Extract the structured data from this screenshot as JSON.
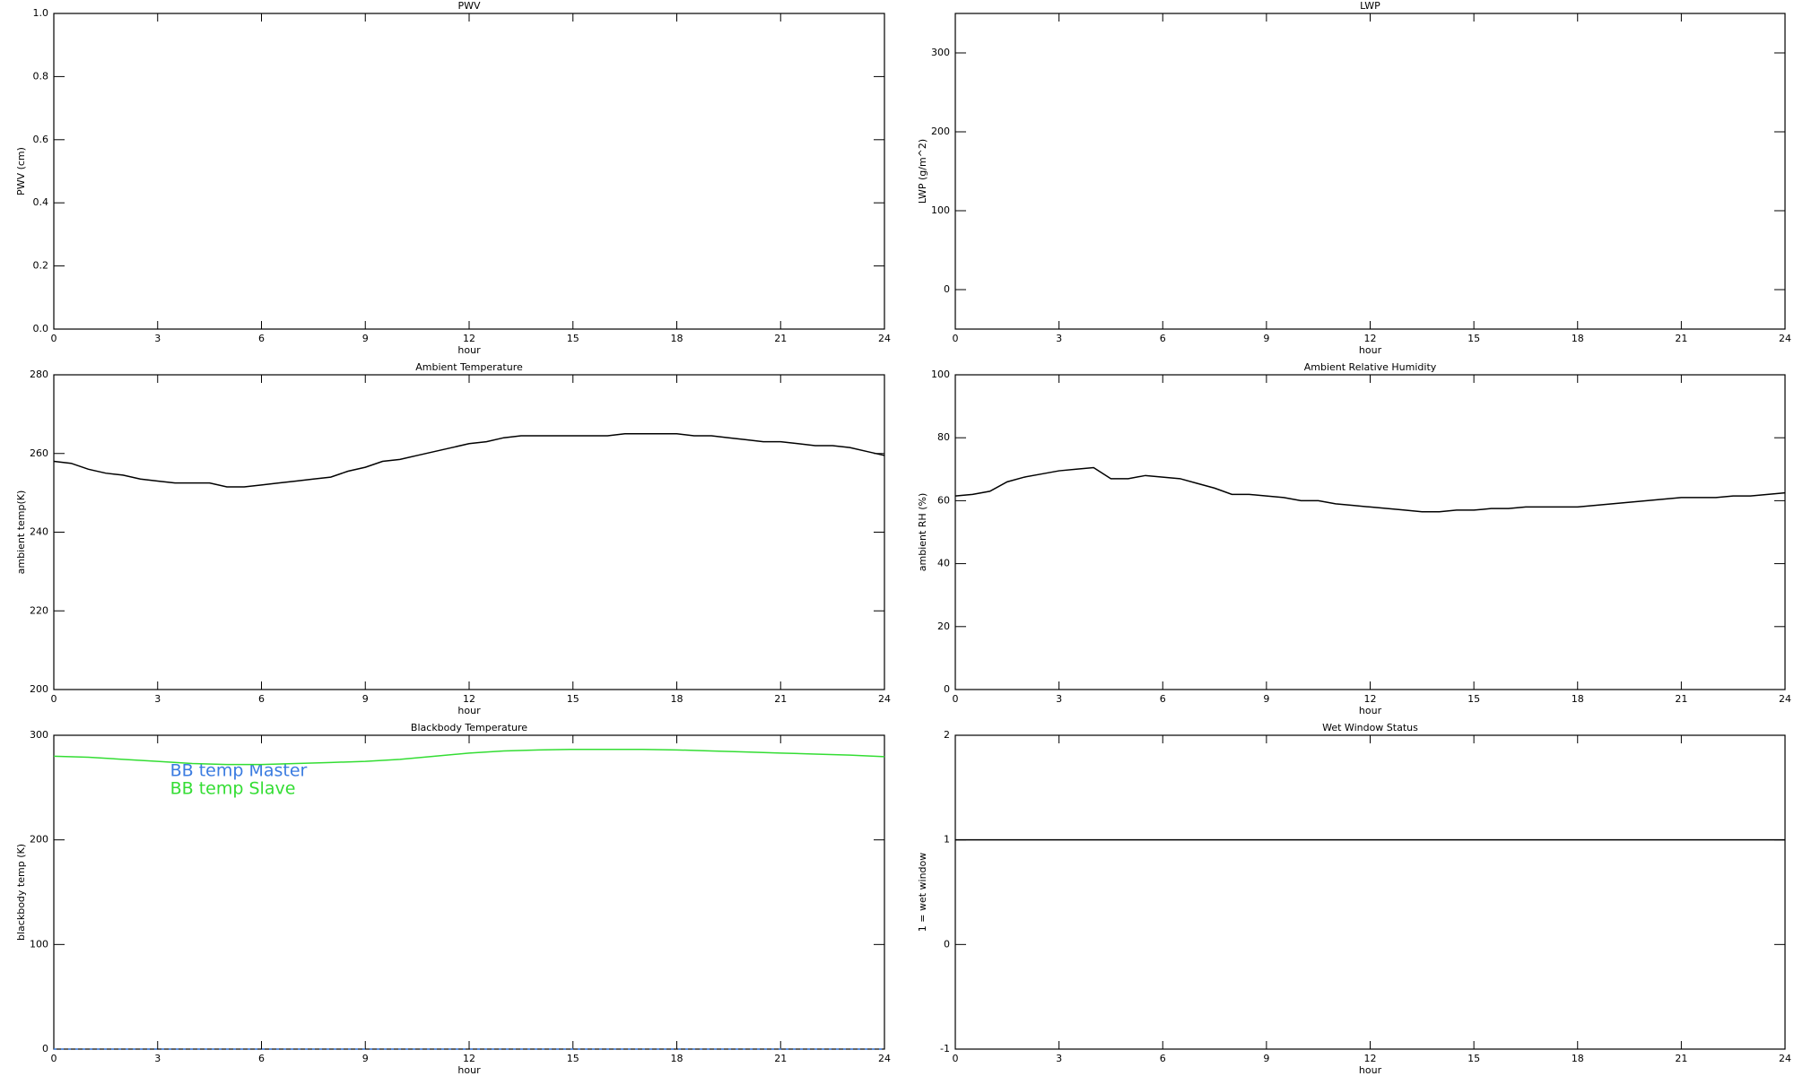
{
  "chart_data": [
    {
      "type": "line",
      "title": "PWV",
      "xlabel": "hour",
      "ylabel": "PWV (cm)",
      "xlim": [
        0,
        24
      ],
      "xticks": [
        0,
        3,
        6,
        9,
        12,
        15,
        18,
        21,
        24
      ],
      "ylim": [
        0,
        1
      ],
      "yticks": [
        {
          "value": 0,
          "label": "0.0"
        },
        0.2,
        0.4,
        0.6,
        0.8,
        {
          "value": 1,
          "label": "1.0"
        }
      ]
    },
    {
      "type": "line",
      "title": "LWP",
      "xlabel": "hour",
      "ylabel": "LWP (g/m^2)",
      "xlim": [
        0,
        24
      ],
      "xticks": [
        0,
        3,
        6,
        9,
        12,
        15,
        18,
        21,
        24
      ],
      "ylim": [
        -50,
        350
      ],
      "yticks": [
        0,
        100,
        200,
        300
      ]
    },
    {
      "type": "line",
      "title": "Ambient Temperature",
      "xlabel": "hour",
      "ylabel": "ambient temp(K)",
      "xlim": [
        0,
        24
      ],
      "xticks": [
        0,
        3,
        6,
        9,
        12,
        15,
        18,
        21,
        24
      ],
      "ylim": [
        200,
        280
      ],
      "yticks": [
        200,
        220,
        240,
        260,
        280
      ],
      "x": [
        0,
        0.5,
        1,
        1.5,
        2,
        2.5,
        3,
        3.5,
        4,
        4.5,
        5,
        5.5,
        6,
        6.5,
        7,
        7.5,
        8,
        8.5,
        9,
        9.5,
        10,
        10.5,
        11,
        11.5,
        12,
        12.5,
        13,
        13.5,
        14,
        14.5,
        15,
        15.5,
        16,
        16.5,
        17,
        17.5,
        18,
        18.5,
        19,
        19.5,
        20,
        20.5,
        21,
        21.5,
        22,
        22.5,
        23,
        23.5,
        24
      ],
      "series": [
        {
          "color": "#000000",
          "values": [
            258,
            257.5,
            256,
            255,
            254.5,
            253.5,
            253,
            252.5,
            252.5,
            252.5,
            251.5,
            251.5,
            252,
            252.5,
            253,
            253.5,
            254,
            255.5,
            256.5,
            258,
            258.5,
            259.5,
            260.5,
            261.5,
            262.5,
            263,
            264,
            264.5,
            264.5,
            264.5,
            264.5,
            264.5,
            264.5,
            265,
            265,
            265,
            265,
            264.5,
            264.5,
            264,
            263.5,
            263,
            263,
            262.5,
            262,
            262,
            261.5,
            260.5,
            259.5
          ]
        }
      ]
    },
    {
      "type": "line",
      "title": "Ambient Relative Humidity",
      "xlabel": "hour",
      "ylabel": "ambient RH (%)",
      "xlim": [
        0,
        24
      ],
      "xticks": [
        0,
        3,
        6,
        9,
        12,
        15,
        18,
        21,
        24
      ],
      "ylim": [
        0,
        100
      ],
      "yticks": [
        0,
        20,
        40,
        60,
        80,
        100
      ],
      "x": [
        0,
        0.5,
        1,
        1.5,
        2,
        2.5,
        3,
        3.5,
        4,
        4.5,
        5,
        5.5,
        6,
        6.5,
        7,
        7.5,
        8,
        8.5,
        9,
        9.5,
        10,
        10.5,
        11,
        11.5,
        12,
        12.5,
        13,
        13.5,
        14,
        14.5,
        15,
        15.5,
        16,
        16.5,
        17,
        17.5,
        18,
        18.5,
        19,
        19.5,
        20,
        20.5,
        21,
        21.5,
        22,
        22.5,
        23,
        23.5,
        24
      ],
      "series": [
        {
          "color": "#000000",
          "values": [
            61.5,
            62,
            63,
            66,
            67.5,
            68.5,
            69.5,
            70,
            70.5,
            67,
            67,
            68,
            67.5,
            67,
            65.5,
            64,
            62,
            62,
            61.5,
            61,
            60,
            60,
            59,
            58.5,
            58,
            57.5,
            57,
            56.5,
            56.5,
            57,
            57,
            57.5,
            57.5,
            58,
            58,
            58,
            58,
            58.5,
            59,
            59.5,
            60,
            60.5,
            61,
            61,
            61,
            61.5,
            61.5,
            62,
            62.5
          ]
        }
      ]
    },
    {
      "type": "line",
      "title": "Blackbody Temperature",
      "xlabel": "hour",
      "ylabel": "blackbody temp (K)",
      "xlim": [
        0,
        24
      ],
      "xticks": [
        0,
        3,
        6,
        9,
        12,
        15,
        18,
        21,
        24
      ],
      "ylim": [
        0,
        300
      ],
      "yticks": [
        0,
        100,
        200,
        300
      ],
      "legend": "upper left",
      "x": [
        0,
        1,
        2,
        3,
        4,
        5,
        6,
        7,
        8,
        9,
        10,
        11,
        12,
        13,
        14,
        15,
        16,
        17,
        18,
        19,
        20,
        21,
        22,
        23,
        24
      ],
      "series": [
        {
          "name": "BB temp Master",
          "color": "#3a7be0",
          "dashed": true,
          "values": [
            0,
            0,
            0,
            0,
            0,
            0,
            0,
            0,
            0,
            0,
            0,
            0,
            0,
            0,
            0,
            0,
            0,
            0,
            0,
            0,
            0,
            0,
            0,
            0,
            0
          ]
        },
        {
          "name": "BB temp Slave",
          "color": "#33dd33",
          "values": [
            280,
            279,
            277,
            275,
            273,
            272,
            272,
            273,
            274,
            275,
            277,
            280,
            283,
            285,
            286,
            286.5,
            286.5,
            286.5,
            286,
            285,
            284,
            283,
            282,
            281,
            279.5
          ]
        }
      ]
    },
    {
      "type": "line",
      "title": "Wet Window Status",
      "xlabel": "hour",
      "ylabel": "1 = wet window",
      "xlim": [
        0,
        24
      ],
      "xticks": [
        0,
        3,
        6,
        9,
        12,
        15,
        18,
        21,
        24
      ],
      "ylim": [
        -1,
        2
      ],
      "yticks": [
        -1,
        0,
        1,
        2
      ],
      "x": [
        0,
        24
      ],
      "series": [
        {
          "color": "#000000",
          "values": [
            1,
            1
          ]
        }
      ]
    }
  ]
}
